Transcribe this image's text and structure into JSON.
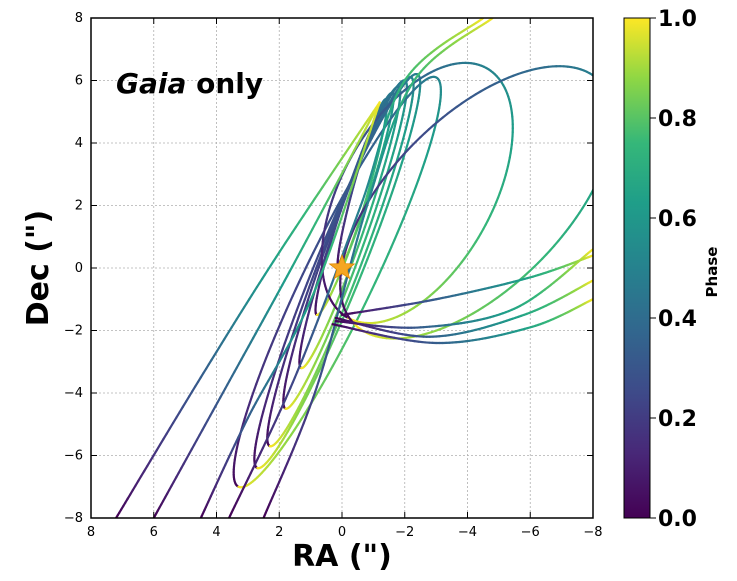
{
  "chart_data": {
    "type": "line",
    "title": "",
    "xlabel": "RA (\")",
    "ylabel": "Dec (\")",
    "xlim": [
      8,
      -8
    ],
    "ylim": [
      -8,
      8
    ],
    "x_ticks": [
      8,
      6,
      4,
      2,
      0,
      -2,
      -4,
      -6,
      -8
    ],
    "y_ticks": [
      8,
      6,
      4,
      2,
      0,
      -2,
      -4,
      -6,
      -8
    ],
    "x_tick_labels": [
      "8",
      "6",
      "4",
      "2",
      "0",
      "−2",
      "−4",
      "−6",
      "−8"
    ],
    "y_tick_labels": [
      "8",
      "6",
      "4",
      "2",
      "0",
      "−2",
      "−4",
      "−6",
      "−8"
    ],
    "grid": true,
    "annotation_italic": "Gaia",
    "annotation_rest": " only",
    "colorbar": {
      "label": "Phase",
      "colormap": "viridis",
      "range": [
        0.0,
        1.0
      ],
      "ticks": [
        0.0,
        0.2,
        0.4,
        0.6,
        0.8,
        1.0
      ],
      "tick_labels": [
        "0.0",
        "0.2",
        "0.4",
        "0.6",
        "0.8",
        "1.0"
      ]
    },
    "star_marker": {
      "x": 0,
      "y": 0,
      "color": "#f5a623"
    },
    "common_apex": {
      "x": -1.2,
      "y": 5.3
    },
    "orbits": [
      {
        "peri": [
          0.1,
          0.0
        ],
        "apo": [
          -1.4,
          5.4
        ],
        "width": 0.5
      },
      {
        "peri": [
          0.8,
          -1.5
        ],
        "apo": [
          -1.6,
          5.6
        ],
        "width": 0.7
      },
      {
        "peri": [
          1.3,
          -3.2
        ],
        "apo": [
          -1.8,
          5.8
        ],
        "width": 0.9
      },
      {
        "peri": [
          1.8,
          -4.5
        ],
        "apo": [
          -2.0,
          6.0
        ],
        "width": 1.1
      },
      {
        "peri": [
          2.3,
          -5.7
        ],
        "apo": [
          -2.2,
          6.1
        ],
        "width": 1.3
      },
      {
        "peri": [
          2.7,
          -6.4
        ],
        "apo": [
          -2.4,
          6.2
        ],
        "width": 1.5
      },
      {
        "peri": [
          3.3,
          -7.0
        ],
        "apo": [
          -3.0,
          6.1
        ],
        "width": 2.2
      },
      {
        "peri": [
          -0.2,
          -1.6
        ],
        "apo": [
          -4.6,
          6.4
        ],
        "width": 4.8
      },
      {
        "peri": [
          -0.4,
          -1.8
        ],
        "apo": [
          -8.2,
          6.0
        ],
        "width": 5.5
      }
    ],
    "open_tracks": [
      {
        "points": [
          [
            7.2,
            -8.0
          ],
          [
            4.5,
            -3.5
          ],
          [
            2.0,
            0.5
          ],
          [
            -1.2,
            5.3
          ]
        ]
      },
      {
        "points": [
          [
            6.0,
            -8.0
          ],
          [
            3.8,
            -4.0
          ],
          [
            1.5,
            0.2
          ],
          [
            -1.2,
            5.3
          ]
        ]
      },
      {
        "points": [
          [
            4.5,
            -8.0
          ],
          [
            3.0,
            -4.8
          ],
          [
            0.9,
            -0.8
          ],
          [
            -1.2,
            5.3
          ]
        ]
      },
      {
        "points": [
          [
            3.6,
            -8.0
          ],
          [
            1.5,
            -3.5
          ],
          [
            -0.6,
            2.0
          ],
          [
            -2.0,
            6.0
          ],
          [
            -4.5,
            8.0
          ]
        ]
      },
      {
        "points": [
          [
            2.5,
            -8.0
          ],
          [
            0.8,
            -3.8
          ],
          [
            -0.8,
            2.0
          ],
          [
            -2.3,
            6.0
          ],
          [
            -4.8,
            8.0
          ]
        ]
      },
      {
        "points": [
          [
            0.2,
            -1.7
          ],
          [
            -2.5,
            -1.9
          ],
          [
            -5.5,
            -1.3
          ],
          [
            -8.0,
            0.6
          ]
        ]
      },
      {
        "points": [
          [
            0.2,
            -1.6
          ],
          [
            -2.8,
            -2.2
          ],
          [
            -5.8,
            -1.5
          ],
          [
            -8.0,
            -0.4
          ]
        ]
      },
      {
        "points": [
          [
            0.0,
            -1.5
          ],
          [
            -3.0,
            -1.0
          ],
          [
            -6.0,
            -0.3
          ],
          [
            -8.0,
            0.4
          ]
        ]
      },
      {
        "points": [
          [
            0.3,
            -1.8
          ],
          [
            -3.0,
            -2.4
          ],
          [
            -6.0,
            -1.9
          ],
          [
            -8.0,
            -1.0
          ]
        ]
      }
    ]
  }
}
